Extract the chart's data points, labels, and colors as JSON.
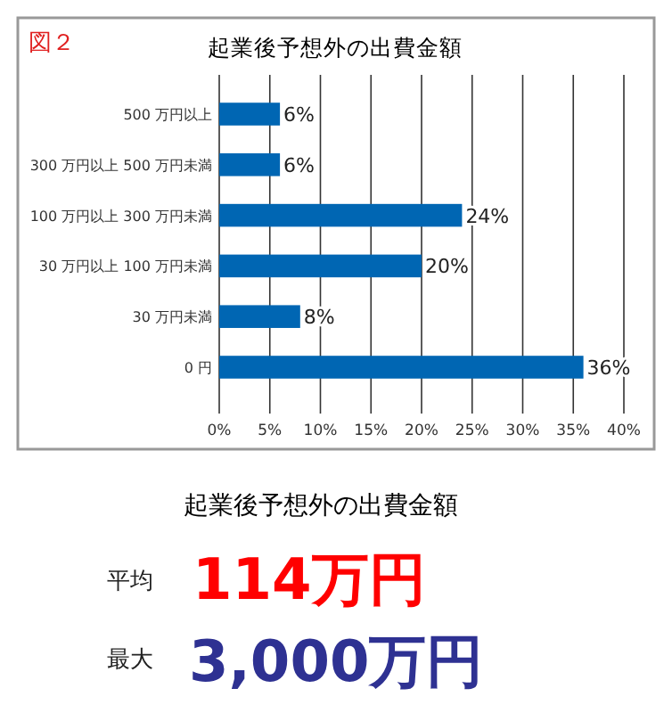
{
  "chart_data": [
    {
      "type": "bar",
      "orientation": "horizontal",
      "title": "起業後予想外の出費金額",
      "annotations": [
        "図２"
      ],
      "categories": [
        "500 万円以上",
        "300 万円以上 500 万円未満",
        "100 万円以上 300 万円未満",
        "30 万円以上 100 万円未満",
        "30 万円未満",
        "0 円"
      ],
      "values": [
        6,
        6,
        24,
        20,
        8,
        36
      ],
      "value_labels": [
        "6%",
        "6%",
        "24%",
        "20%",
        "8%",
        "36%"
      ],
      "color": "#0066b3",
      "grid": "x",
      "xlim": [
        0,
        40
      ],
      "xticks": [
        {
          "value": 0,
          "label": "0%"
        },
        {
          "value": 5,
          "label": "5%"
        },
        {
          "value": 10,
          "label": "10%"
        },
        {
          "value": 15,
          "label": "15%"
        },
        {
          "value": 20,
          "label": "20%"
        },
        {
          "value": 25,
          "label": "25%"
        },
        {
          "value": 30,
          "label": "30%"
        },
        {
          "value": 35,
          "label": "35%"
        },
        {
          "value": 40,
          "label": "40%"
        }
      ]
    },
    {
      "type": "other",
      "title": "起業後予想外の出費金額",
      "annotations": [
        "平均",
        "114万円",
        "最大",
        "3,000万円"
      ]
    }
  ]
}
